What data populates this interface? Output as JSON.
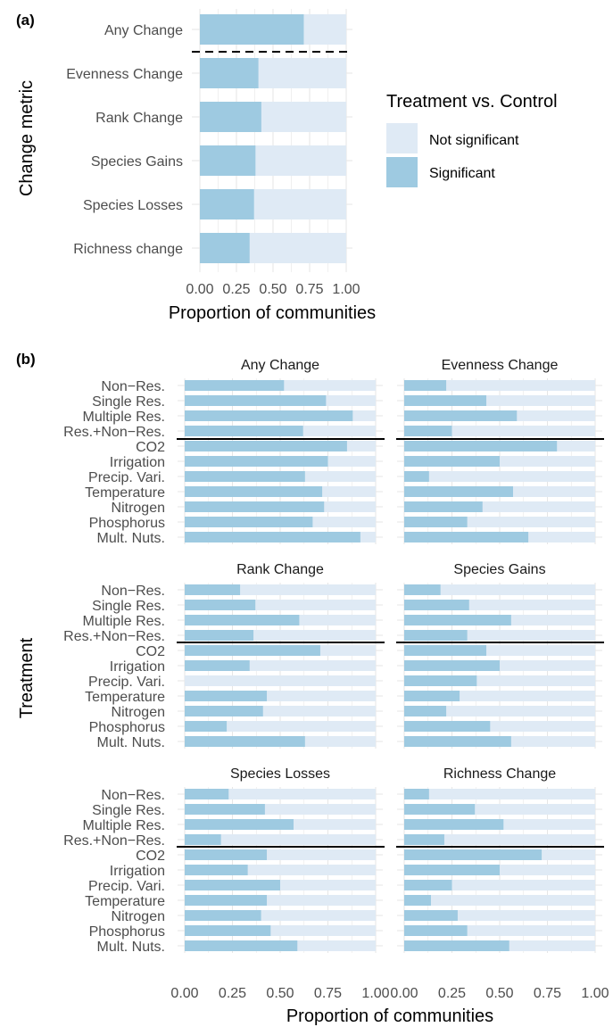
{
  "chart_data": [
    {
      "panel_label": "(a)",
      "type": "bar",
      "orientation": "horizontal",
      "stacked_to": 1.0,
      "categories": [
        "Any Change",
        "Evenness Change",
        "Rank Change",
        "Species Gains",
        "Species Losses",
        "Richness change"
      ],
      "values": [
        0.71,
        0.4,
        0.42,
        0.38,
        0.37,
        0.34
      ],
      "xlabel": "Proportion of communities",
      "ylabel": "Change metric",
      "xlim": [
        0,
        1
      ],
      "xticks": [
        "0.00",
        "0.25",
        "0.50",
        "0.75",
        "1.00"
      ],
      "separator": "dashed line below Any Change",
      "legend": {
        "title": "Treatment vs. Control",
        "placement": "right",
        "items": [
          {
            "label": "Not significant",
            "color": "#dfeaf5"
          },
          {
            "label": "Significant",
            "color": "#9ecae1"
          }
        ]
      }
    },
    {
      "panel_label": "(b)",
      "type": "bar",
      "orientation": "horizontal",
      "stacked_to": 1.0,
      "xlabel": "Proportion of communities",
      "ylabel": "Treatment",
      "xlim": [
        0,
        1
      ],
      "xticks": [
        "0.00",
        "0.25",
        "0.50",
        "0.75",
        "1.00"
      ],
      "categories": [
        "Non−Res.",
        "Single Res.",
        "Multiple Res.",
        "Res.+Non−Res.",
        "CO2",
        "Irrigation",
        "Precip. Vari.",
        "Temperature",
        "Nitrogen",
        "Phosphorus",
        "Mult. Nuts."
      ],
      "separator": "solid line below Res.+Non−Res.",
      "facets": [
        {
          "title": "Any Change",
          "values": [
            0.52,
            0.74,
            0.88,
            0.62,
            0.85,
            0.75,
            0.63,
            0.72,
            0.73,
            0.67,
            0.92
          ]
        },
        {
          "title": "Evenness Change",
          "values": [
            0.22,
            0.43,
            0.59,
            0.25,
            0.8,
            0.5,
            0.13,
            0.57,
            0.41,
            0.33,
            0.65
          ]
        },
        {
          "title": "Rank Change",
          "values": [
            0.29,
            0.37,
            0.6,
            0.36,
            0.71,
            0.34,
            0.0,
            0.43,
            0.41,
            0.22,
            0.63
          ]
        },
        {
          "title": "Species Gains",
          "values": [
            0.19,
            0.34,
            0.56,
            0.33,
            0.43,
            0.5,
            0.38,
            0.29,
            0.22,
            0.45,
            0.56
          ]
        },
        {
          "title": "Species Losses",
          "values": [
            0.23,
            0.42,
            0.57,
            0.19,
            0.43,
            0.33,
            0.5,
            0.43,
            0.4,
            0.45,
            0.59
          ]
        },
        {
          "title": "Richness Change",
          "values": [
            0.13,
            0.37,
            0.52,
            0.21,
            0.72,
            0.5,
            0.25,
            0.14,
            0.28,
            0.33,
            0.55
          ]
        }
      ]
    }
  ],
  "colors": {
    "significant": "#9ecae1",
    "not_significant": "#dfeaf5",
    "grid": "#e6e6e6",
    "text": "#4d4d4d",
    "title_text": "#1a1a1a"
  }
}
